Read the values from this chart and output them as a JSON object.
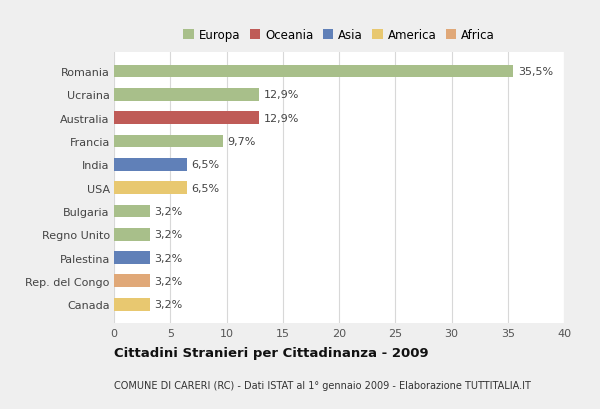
{
  "categories": [
    "Romania",
    "Ucraina",
    "Australia",
    "Francia",
    "India",
    "USA",
    "Bulgaria",
    "Regno Unito",
    "Palestina",
    "Rep. del Congo",
    "Canada"
  ],
  "values": [
    35.5,
    12.9,
    12.9,
    9.7,
    6.5,
    6.5,
    3.2,
    3.2,
    3.2,
    3.2,
    3.2
  ],
  "labels": [
    "35,5%",
    "12,9%",
    "12,9%",
    "9,7%",
    "6,5%",
    "6,5%",
    "3,2%",
    "3,2%",
    "3,2%",
    "3,2%",
    "3,2%"
  ],
  "colors": [
    "#a8bf8a",
    "#a8bf8a",
    "#bf5b57",
    "#a8bf8a",
    "#6080b8",
    "#e8c870",
    "#a8bf8a",
    "#a8bf8a",
    "#6080b8",
    "#e0a878",
    "#e8c870"
  ],
  "legend": [
    {
      "label": "Europa",
      "color": "#a8bf8a"
    },
    {
      "label": "Oceania",
      "color": "#bf5b57"
    },
    {
      "label": "Asia",
      "color": "#6080b8"
    },
    {
      "label": "America",
      "color": "#e8c870"
    },
    {
      "label": "Africa",
      "color": "#e0a878"
    }
  ],
  "xlim": [
    0,
    40
  ],
  "xticks": [
    0,
    5,
    10,
    15,
    20,
    25,
    30,
    35,
    40
  ],
  "title": "Cittadini Stranieri per Cittadinanza - 2009",
  "subtitle": "COMUNE DI CARERI (RC) - Dati ISTAT al 1° gennaio 2009 - Elaborazione TUTTITALIA.IT",
  "outer_bg": "#efefef",
  "inner_bg": "#ffffff",
  "grid_color": "#d8d8d8",
  "bar_height": 0.55,
  "label_fontsize": 8.0,
  "tick_fontsize": 8.0,
  "legend_fontsize": 8.5
}
